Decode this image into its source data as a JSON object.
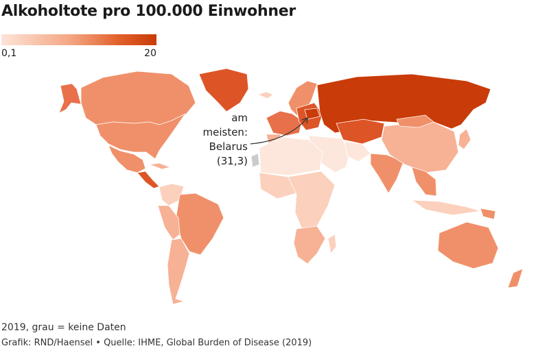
{
  "title": "Alkoholtote pro 100.000 Einwohner",
  "legend": {
    "min_label": "0,1",
    "max_label": "20",
    "min_color": "#fde4d8",
    "max_color": "#c93b08"
  },
  "annotation": {
    "lines": [
      "am",
      "meisten:",
      "Belarus",
      "(31,3)"
    ]
  },
  "footer": {
    "note": "2019, grau = keine Daten",
    "credit_prefix": "Grafik: RND/Haensel",
    "separator": "•",
    "source": "Quelle: IHME, Global Burden of Disease (2019)"
  },
  "colors": {
    "very_light": "#fde7dc",
    "light": "#fbd0bc",
    "medium_light": "#f7b195",
    "medium": "#f0906a",
    "medium_dark": "#e8704a",
    "dark": "#dd5526",
    "darkest": "#c93b08",
    "no_data": "#c9cbcf"
  },
  "regions": [
    {
      "name": "Alaska",
      "shade": "medium_dark"
    },
    {
      "name": "Kanada",
      "shade": "medium"
    },
    {
      "name": "Grönland",
      "shade": "dark"
    },
    {
      "name": "USA",
      "shade": "medium"
    },
    {
      "name": "Mexiko",
      "shade": "medium"
    },
    {
      "name": "Zentralamerika",
      "shade": "dark"
    },
    {
      "name": "Kuba",
      "shade": "medium_light"
    },
    {
      "name": "Kolumbien/Venezuela",
      "shade": "light"
    },
    {
      "name": "Brasilien",
      "shade": "medium"
    },
    {
      "name": "Peru/Bolivien",
      "shade": "medium_light"
    },
    {
      "name": "Argentinien/Chile",
      "shade": "medium_light"
    },
    {
      "name": "Island",
      "shade": "light"
    },
    {
      "name": "Skandinavien",
      "shade": "medium"
    },
    {
      "name": "Westeuropa",
      "shade": "medium_dark"
    },
    {
      "name": "Iberische Halbinsel",
      "shade": "medium_light"
    },
    {
      "name": "Osteuropa",
      "shade": "dark"
    },
    {
      "name": "Belarus",
      "shade": "darkest"
    },
    {
      "name": "Russland",
      "shade": "darkest"
    },
    {
      "name": "Kasachstan/Zentralasien",
      "shade": "dark"
    },
    {
      "name": "Naher Osten",
      "shade": "very_light"
    },
    {
      "name": "Iran",
      "shade": "very_light"
    },
    {
      "name": "Nordafrika",
      "shade": "very_light"
    },
    {
      "name": "Westsahara",
      "shade": "no_data"
    },
    {
      "name": "Westafrika",
      "shade": "light"
    },
    {
      "name": "Zentral- und Ostafrika",
      "shade": "light"
    },
    {
      "name": "Südliches Afrika",
      "shade": "medium_light"
    },
    {
      "name": "Madagaskar",
      "shade": "light"
    },
    {
      "name": "Indien",
      "shade": "medium"
    },
    {
      "name": "China",
      "shade": "medium_light"
    },
    {
      "name": "Mongolei",
      "shade": "medium"
    },
    {
      "name": "Südostasien",
      "shade": "medium"
    },
    {
      "name": "Japan",
      "shade": "medium_light"
    },
    {
      "name": "Indonesien",
      "shade": "light"
    },
    {
      "name": "Papua-Neuguinea",
      "shade": "medium"
    },
    {
      "name": "Australien",
      "shade": "medium"
    },
    {
      "name": "Neuseeland",
      "shade": "medium"
    }
  ]
}
